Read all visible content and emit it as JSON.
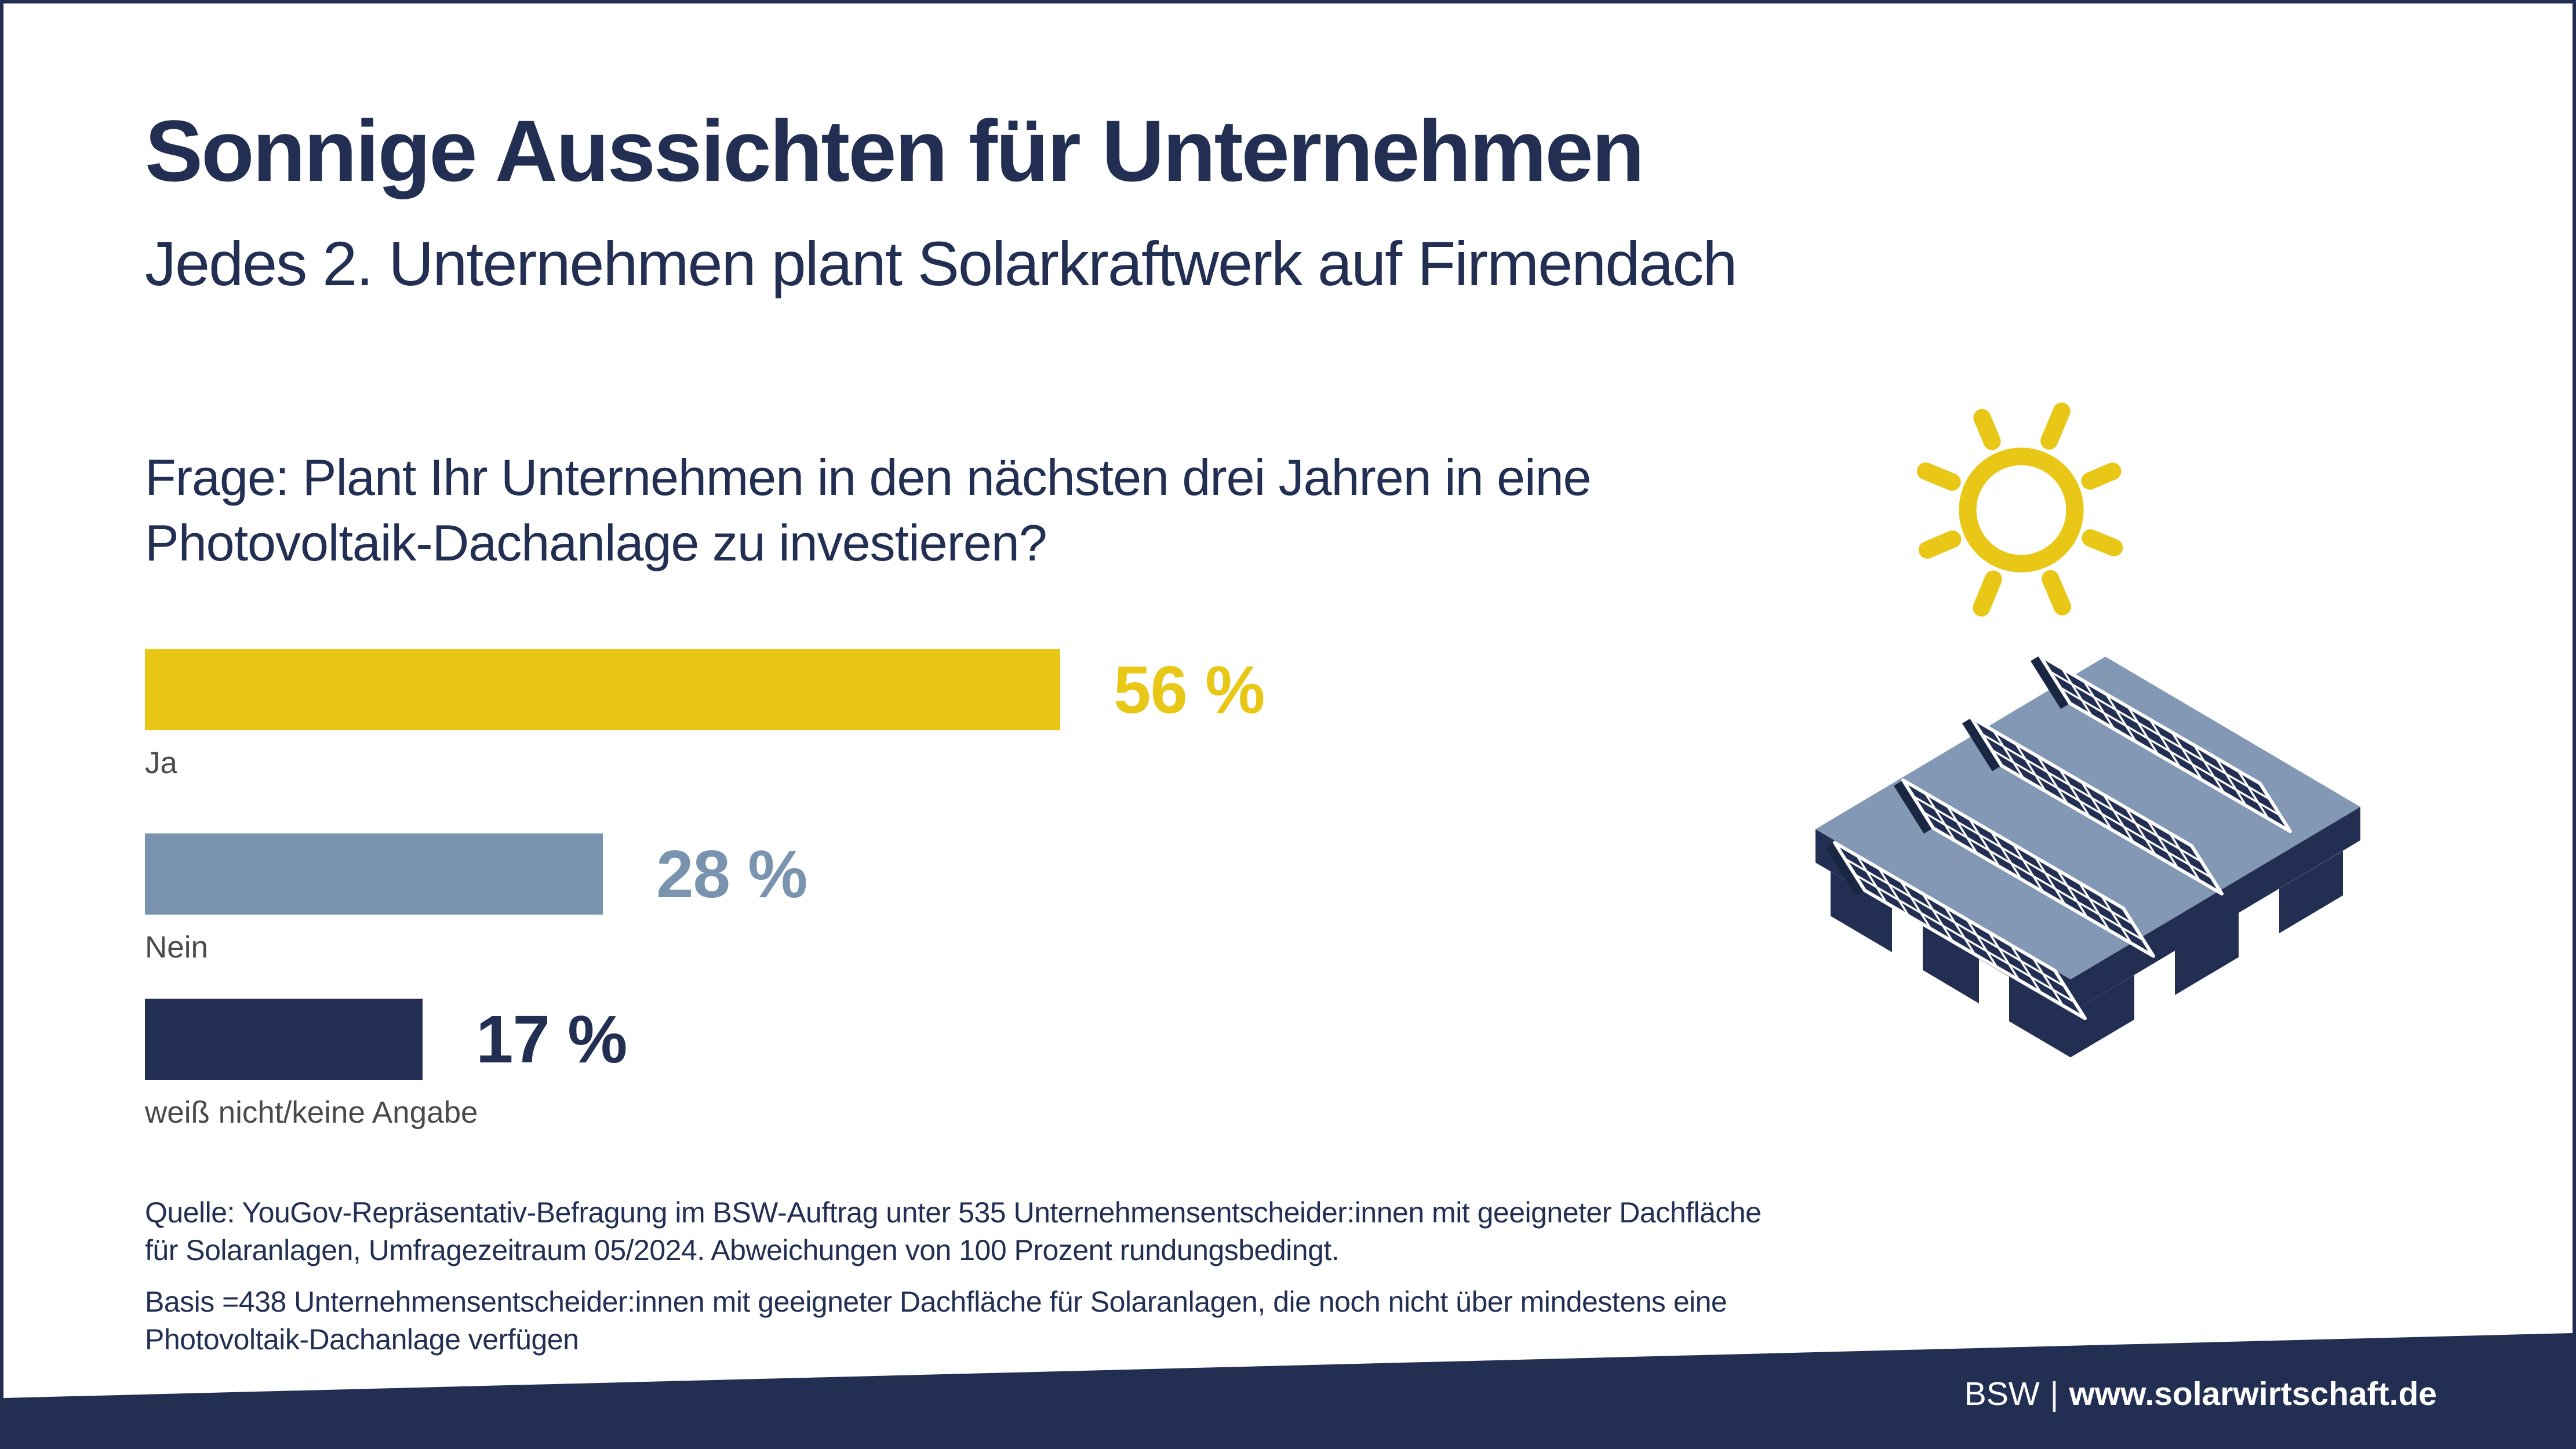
{
  "header": {
    "title": "Sonnige Aussichten für Unternehmen",
    "subtitle": "Jedes 2. Unternehmen plant Solarkraftwerk auf Firmendach"
  },
  "question": "Frage: Plant Ihr Unternehmen in den nächsten drei Jahren in eine\nPhotovoltaik-Dachanlage zu investieren?",
  "chart_data": {
    "type": "bar",
    "orientation": "horizontal",
    "categories": [
      "Ja",
      "Nein",
      "weiß nicht/keine Angabe"
    ],
    "values": [
      56,
      28,
      17
    ],
    "value_suffix": " %",
    "value_labels": [
      "56 %",
      "28 %",
      "17 %"
    ],
    "series_colors": [
      "#E9C716",
      "#7A94B0",
      "#222F53"
    ],
    "xlim": [
      0,
      100
    ],
    "grid": false,
    "value_label_position": "right-of-bar",
    "category_label_position": "below-bar"
  },
  "footnotes": {
    "source": "Quelle: YouGov-Repräsentativ-Befragung im BSW-Auftrag unter 535 Unternehmensentscheider:innen mit geeigneter Dachfläche\nfür Solaranlagen, Umfragezeitraum 05/2024. Abweichungen von 100 Prozent rundungsbedingt.",
    "basis": "Basis =438 Unternehmensentscheider:innen mit geeigneter Dachfläche für Solaranlagen, die noch nicht über mindestens eine\nPhotovoltaik-Dachanlage verfügen"
  },
  "footer": {
    "org": "BSW",
    "separator": "|",
    "url": "www.solarwirtschaft.de"
  },
  "icons": {
    "sun": "sun-icon",
    "building": "solar-roof-illustration"
  },
  "colors": {
    "navy": "#222F53",
    "yellow": "#E9C716",
    "blue_gray": "#7A94B0",
    "roof_gray": "#8298B4",
    "label_gray": "#4A4A49",
    "panel_side": "#1A2742",
    "background": "#FFFFFF",
    "footer_text": "#FFFFFF"
  }
}
